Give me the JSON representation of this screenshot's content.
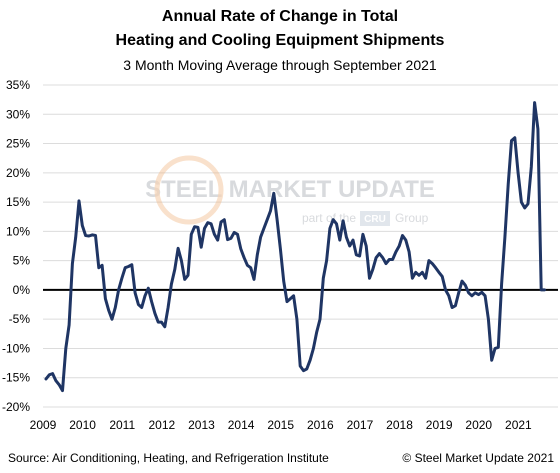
{
  "title_line1": "Annual Rate of Change in Total",
  "title_line2": "Heating and Cooling Equipment Shipments",
  "subtitle": "3 Month Moving Average through September 2021",
  "watermark": {
    "brand": "STEEL MARKET UPDATE",
    "tag_prefix": "part of the",
    "tag_badge": "CRU",
    "tag_suffix": "Group"
  },
  "source": "Source: Air Conditioning, Heating, and Refrigeration Institute",
  "copyright": "© Steel Market Update 2021",
  "colors": {
    "line": "#1f3564",
    "zero_line": "#000000",
    "grid": "#dcdcdc"
  },
  "chart_data": {
    "type": "line",
    "title": "Annual Rate of Change in Total Heating and Cooling Equipment Shipments",
    "subtitle": "3 Month Moving Average through September 2021",
    "xlabel": "",
    "ylabel": "",
    "ylim": [
      -20,
      35
    ],
    "y_ticks": [
      -20,
      -15,
      -10,
      -5,
      0,
      5,
      10,
      15,
      20,
      25,
      30,
      35
    ],
    "y_tick_labels": [
      "-20%",
      "-15%",
      "-10%",
      "-5%",
      "0%",
      "5%",
      "10%",
      "15%",
      "20%",
      "25%",
      "30%",
      "35%"
    ],
    "x_tick_labels": [
      "2009",
      "2010",
      "2011",
      "2012",
      "2013",
      "2014",
      "2015",
      "2016",
      "2017",
      "2018",
      "2019",
      "2020",
      "2021"
    ],
    "grid": "horizontal",
    "x_start": "Jan 2009",
    "x_end": "Sep 2021",
    "series": [
      {
        "values": [
          -15.2,
          -14.5,
          -14.3,
          -15.5,
          -16.2,
          -17.2,
          -10,
          -6,
          4.5,
          9,
          15.2,
          11,
          9.3,
          9.2,
          9.4,
          9.3,
          3.8,
          4.2,
          -1.5,
          -3.5,
          -5,
          -3,
          0,
          2,
          3.8,
          4,
          4.3,
          -0.5,
          -2.5,
          -3,
          -1,
          0.3,
          -2,
          -4,
          -5.5,
          -5.5,
          -6.3,
          -3,
          1,
          3.5,
          7.1,
          5,
          1.8,
          2.5,
          9.5,
          10.8,
          10.7,
          7.3,
          10.5,
          11.5,
          11.3,
          9.5,
          8.5,
          11.6,
          12,
          8.6,
          8.8,
          9.8,
          9.5,
          7,
          5.5,
          4.2,
          3.8,
          1.8,
          6,
          9,
          10.5,
          12,
          13.5,
          16.5,
          12,
          7,
          1.5,
          -2,
          -1.5,
          -1,
          -5,
          -13,
          -13.8,
          -13.5,
          -12,
          -10,
          -7.2,
          -5,
          2,
          5,
          10.5,
          12,
          11.3,
          8.5,
          11.8,
          9,
          7.5,
          8.5,
          6,
          5.8,
          9.5,
          7.5,
          2,
          3.5,
          5.5,
          6.2,
          5.5,
          4.5,
          5.2,
          5.2,
          6.5,
          7.5,
          9.3,
          8.5,
          6.5,
          2,
          3,
          2.5,
          3,
          2,
          5,
          4.5,
          3.8,
          3,
          2.3,
          0,
          -1,
          -3,
          -2.7,
          -0.5,
          1.5,
          0.8,
          -0.5,
          -1,
          -0.5,
          -0.8,
          -0.4,
          -1,
          -5,
          -12,
          -10,
          -9.8,
          1,
          9,
          18,
          25.5,
          26,
          20,
          15,
          14,
          14.7,
          21,
          32,
          27.5,
          0,
          0
        ]
      }
    ]
  }
}
